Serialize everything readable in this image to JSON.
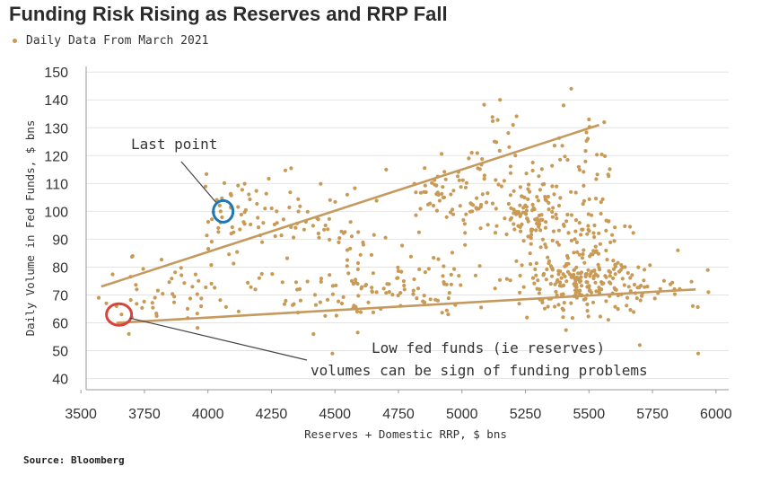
{
  "chart_data": {
    "type": "scatter",
    "title": "Funding Risk Rising as Reserves and RRP Fall",
    "legend": {
      "label": "Daily Data From March 2021",
      "position": "top-left"
    },
    "xlabel": "Reserves + Domestic RRP, $ bns",
    "ylabel": "Daily Volume in Fed Funds, $ bns",
    "xlim": [
      3450,
      6050
    ],
    "ylim": [
      36,
      152
    ],
    "xticks": [
      3500,
      3750,
      4000,
      4250,
      4500,
      4750,
      5000,
      5250,
      5500,
      5750,
      6000
    ],
    "yticks": [
      40,
      50,
      60,
      70,
      80,
      90,
      100,
      110,
      120,
      130,
      140,
      150
    ],
    "grid": "horizontal",
    "source": "Source: Bloomberg",
    "colors": {
      "points": "#c89a55",
      "trend": "#c59a5f",
      "last_point_circle": "#1f78b4",
      "low_point_circle": "#d9443a"
    },
    "trendlines": [
      {
        "from": [
          3580,
          73
        ],
        "to": [
          5540,
          131
        ]
      },
      {
        "from": [
          3640,
          60
        ],
        "to": [
          5920,
          72
        ]
      }
    ],
    "clusters": [
      {
        "cx": 3870,
        "cy": 70,
        "sx": 110,
        "sy": 6,
        "n": 45
      },
      {
        "cx": 4080,
        "cy": 94,
        "sx": 70,
        "sy": 7,
        "n": 30
      },
      {
        "cx": 4300,
        "cy": 98,
        "sx": 120,
        "sy": 7,
        "n": 55
      },
      {
        "cx": 4400,
        "cy": 70,
        "sx": 140,
        "sy": 6,
        "n": 45
      },
      {
        "cx": 4570,
        "cy": 90,
        "sx": 60,
        "sy": 7,
        "n": 20
      },
      {
        "cx": 4700,
        "cy": 75,
        "sx": 130,
        "sy": 6,
        "n": 35
      },
      {
        "cx": 4980,
        "cy": 105,
        "sx": 120,
        "sy": 8,
        "n": 80
      },
      {
        "cx": 4950,
        "cy": 72,
        "sx": 150,
        "sy": 6,
        "n": 40
      },
      {
        "cx": 5150,
        "cy": 128,
        "sx": 40,
        "sy": 6,
        "n": 12
      },
      {
        "cx": 5270,
        "cy": 100,
        "sx": 70,
        "sy": 8,
        "n": 110
      },
      {
        "cx": 5450,
        "cy": 112,
        "sx": 70,
        "sy": 12,
        "n": 45
      },
      {
        "cx": 5520,
        "cy": 90,
        "sx": 70,
        "sy": 6,
        "n": 40
      },
      {
        "cx": 5450,
        "cy": 74,
        "sx": 120,
        "sy": 5,
        "n": 200
      },
      {
        "cx": 5760,
        "cy": 72,
        "sx": 130,
        "sy": 4,
        "n": 30
      }
    ],
    "points": [
      {
        "x": 3570,
        "y": 69
      },
      {
        "x": 3600,
        "y": 67
      },
      {
        "x": 3640,
        "y": 66
      },
      {
        "x": 3660,
        "y": 63
      },
      {
        "x": 3700,
        "y": 62
      },
      {
        "x": 3720,
        "y": 72
      },
      {
        "x": 4050,
        "y": 100
      },
      {
        "x": 4490,
        "y": 49
      },
      {
        "x": 5150,
        "y": 140
      },
      {
        "x": 5430,
        "y": 144
      },
      {
        "x": 5400,
        "y": 138
      },
      {
        "x": 5500,
        "y": 133
      },
      {
        "x": 5560,
        "y": 132
      },
      {
        "x": 5850,
        "y": 86
      },
      {
        "x": 5930,
        "y": 49
      },
      {
        "x": 5970,
        "y": 71
      },
      {
        "x": 5700,
        "y": 52
      },
      {
        "x": 4680,
        "y": 65
      }
    ],
    "annotations": [
      {
        "text": "Last point",
        "point": [
          4060,
          100
        ],
        "circle": "blue"
      },
      {
        "text": "Low fed funds (ie reserves)",
        "point": [
          3650,
          63
        ],
        "circle": "red"
      },
      {
        "text": "volumes can be sign of funding problems"
      }
    ]
  }
}
